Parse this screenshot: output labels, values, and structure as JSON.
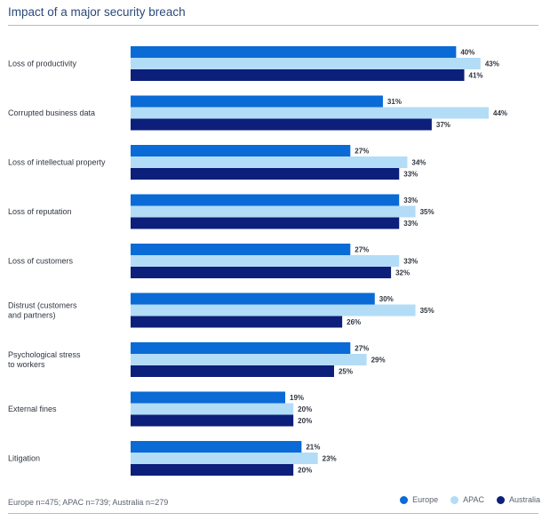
{
  "chart_data": {
    "type": "bar",
    "orientation": "horizontal",
    "title": "Impact of a major security breach",
    "categories": [
      [
        "Loss of productivity"
      ],
      [
        "Corrupted business data"
      ],
      [
        "Loss of intellectual property"
      ],
      [
        "Loss of reputation"
      ],
      [
        "Loss of customers"
      ],
      [
        "Distrust (customers",
        "and partners)"
      ],
      [
        "Psychological stress",
        "to workers"
      ],
      [
        "External fines"
      ],
      [
        "Litigation"
      ]
    ],
    "series": [
      {
        "name": "Europe",
        "color": "#0a6ad6",
        "values": [
          40,
          31,
          27,
          33,
          27,
          30,
          27,
          19,
          21
        ]
      },
      {
        "name": "APAC",
        "color": "#b3dcf7",
        "values": [
          43,
          44,
          34,
          35,
          33,
          35,
          29,
          20,
          23
        ]
      },
      {
        "name": "Australia",
        "color": "#0c1f7a",
        "values": [
          41,
          37,
          33,
          33,
          32,
          26,
          25,
          20,
          20
        ]
      }
    ],
    "value_suffix": "%",
    "xlim": [
      0,
      44
    ],
    "grid": false,
    "legend_position": "bottom-right",
    "footnote": "Europe n=475; APAC n=739; Australia n=279"
  }
}
